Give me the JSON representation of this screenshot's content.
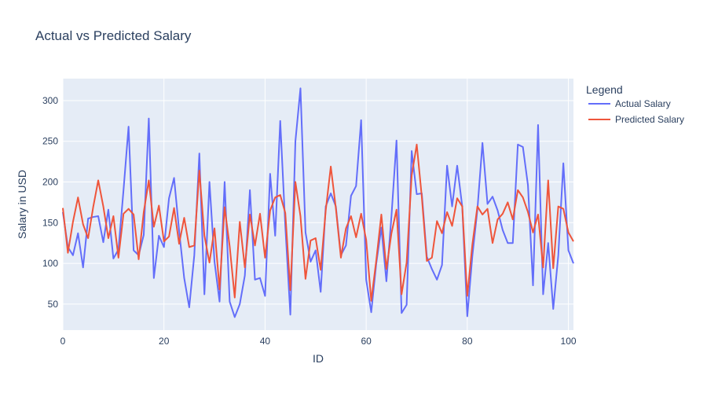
{
  "chart_data": {
    "type": "line",
    "title": "Actual vs Predicted Salary",
    "xlabel": "ID",
    "ylabel": "Salary in USD",
    "xlim": [
      0,
      101
    ],
    "ylim": [
      18,
      327
    ],
    "xticks": [
      0,
      20,
      40,
      60,
      80,
      100
    ],
    "yticks": [
      50,
      100,
      150,
      200,
      250,
      300
    ],
    "grid": true,
    "legend": {
      "title": "Legend",
      "position": "right"
    },
    "series": [
      {
        "name": "Actual Salary",
        "color": "#636efa",
        "values": [
          163,
          120,
          110,
          137,
          95,
          155,
          157,
          158,
          126,
          166,
          106,
          117,
          190,
          268,
          116,
          110,
          135,
          278,
          82,
          134,
          120,
          180,
          205,
          140,
          82,
          46,
          110,
          235,
          62,
          200,
          102,
          53,
          200,
          53,
          34,
          50,
          85,
          190,
          80,
          82,
          60,
          210,
          134,
          275,
          146,
          37,
          250,
          315,
          138,
          102,
          116,
          65,
          170,
          186,
          170,
          110,
          122,
          183,
          195,
          276,
          80,
          40,
          100,
          144,
          78,
          158,
          251,
          39,
          49,
          238,
          185,
          186,
          108,
          93,
          80,
          98,
          220,
          170,
          220,
          170,
          35,
          109,
          166,
          248,
          173,
          182,
          165,
          141,
          125,
          125,
          246,
          243,
          196,
          73,
          270,
          62,
          125,
          44,
          110,
          223,
          116,
          100
        ]
      },
      {
        "name": "Predicted Salary",
        "color": "#ef553b",
        "values": [
          168,
          113,
          151,
          181,
          148,
          131,
          169,
          202,
          170,
          131,
          158,
          107,
          161,
          167,
          160,
          105,
          163,
          202,
          145,
          171,
          127,
          133,
          168,
          124,
          156,
          120,
          122,
          214,
          134,
          101,
          143,
          68,
          169,
          121,
          58,
          151,
          95,
          160,
          122,
          161,
          107,
          165,
          181,
          184,
          162,
          67,
          200,
          158,
          81,
          128,
          131,
          92,
          165,
          219,
          168,
          107,
          143,
          158,
          132,
          161,
          129,
          54,
          104,
          160,
          93,
          137,
          166,
          62,
          101,
          208,
          246,
          182,
          103,
          107,
          152,
          137,
          163,
          146,
          180,
          170,
          60,
          123,
          170,
          160,
          167,
          125,
          154,
          161,
          175,
          154,
          190,
          181,
          163,
          138,
          160,
          95,
          202,
          94,
          170,
          167,
          138,
          127
        ]
      }
    ]
  }
}
